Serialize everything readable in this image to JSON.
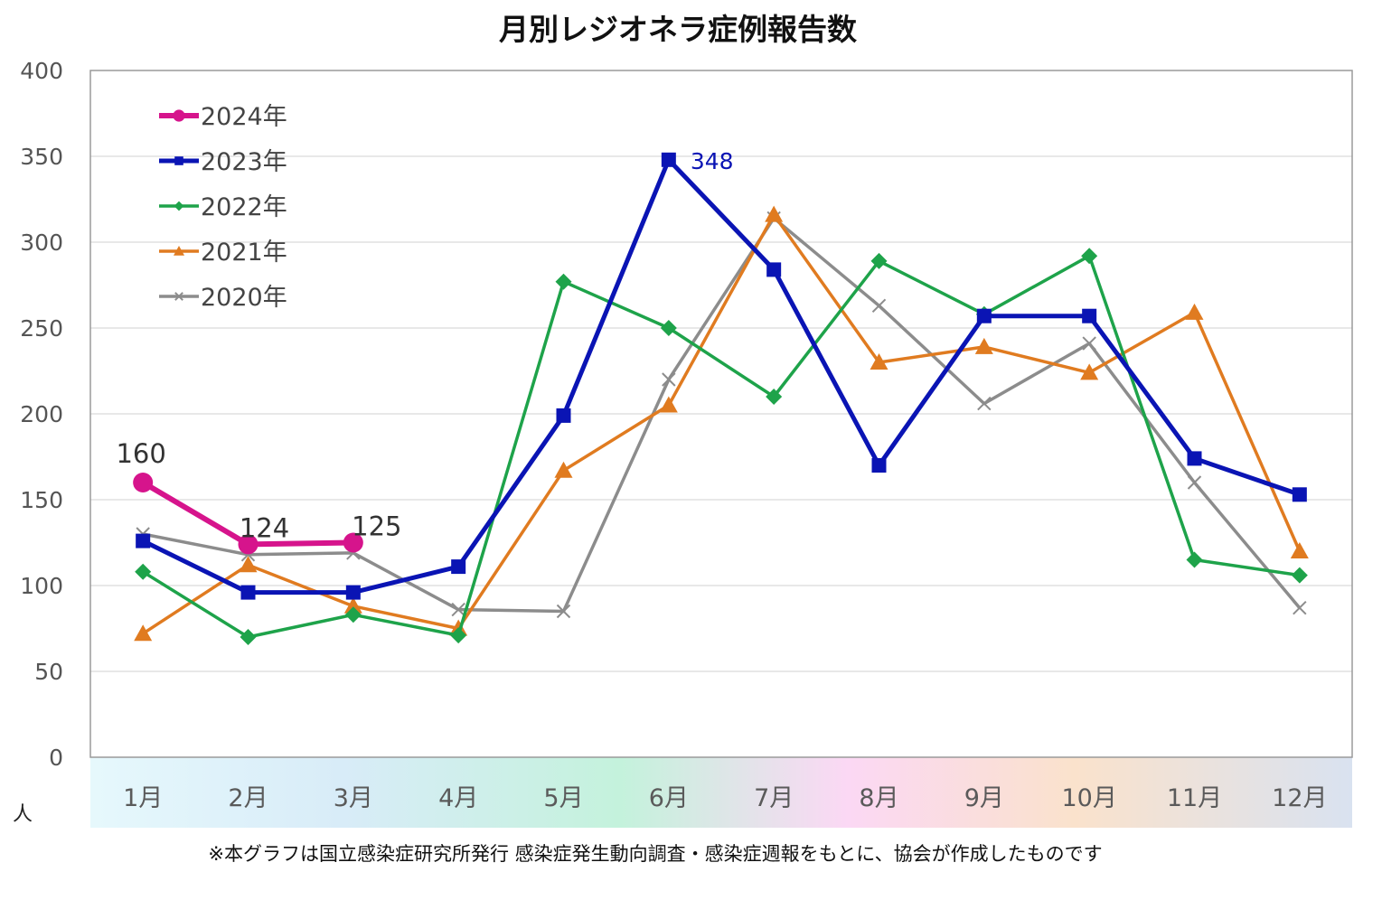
{
  "chart_data": {
    "type": "line",
    "title": "月別レジオネラ症例報告数",
    "ylabel": "人",
    "xlabel": "",
    "categories": [
      "1月",
      "2月",
      "3月",
      "4月",
      "5月",
      "6月",
      "7月",
      "8月",
      "9月",
      "10月",
      "11月",
      "12月"
    ],
    "ylim": [
      0,
      400
    ],
    "yticks": [
      "0",
      "50",
      "100",
      "150",
      "200",
      "250",
      "300",
      "350",
      "400"
    ],
    "grid": true,
    "legend_position": "top-left",
    "series": [
      {
        "name": "2024年",
        "color": "#d6148c",
        "marker": "circle",
        "values": [
          160,
          124,
          125,
          null,
          null,
          null,
          null,
          null,
          null,
          null,
          null,
          null
        ],
        "labels": [
          "160",
          "124",
          "125"
        ]
      },
      {
        "name": "2023年",
        "color": "#0a14b4",
        "marker": "square",
        "values": [
          126,
          96,
          96,
          111,
          199,
          348,
          284,
          170,
          257,
          257,
          174,
          153
        ],
        "labels": [
          "348"
        ]
      },
      {
        "name": "2022年",
        "color": "#1ea34a",
        "marker": "diamond",
        "values": [
          108,
          70,
          83,
          71,
          277,
          250,
          210,
          289,
          258,
          292,
          115,
          106
        ]
      },
      {
        "name": "2021年",
        "color": "#e07b20",
        "marker": "triangle",
        "values": [
          72,
          112,
          88,
          75,
          167,
          205,
          316,
          230,
          239,
          224,
          259,
          120
        ]
      },
      {
        "name": "2020年",
        "color": "#8c8c8c",
        "marker": "x",
        "values": [
          130,
          118,
          119,
          86,
          85,
          220,
          314,
          263,
          206,
          241,
          160,
          87
        ]
      }
    ]
  },
  "footnote": "※本グラフは国立感染症研究所発行 感染症発生動向調査・感染症週報をもとに、協会が作成したものです"
}
